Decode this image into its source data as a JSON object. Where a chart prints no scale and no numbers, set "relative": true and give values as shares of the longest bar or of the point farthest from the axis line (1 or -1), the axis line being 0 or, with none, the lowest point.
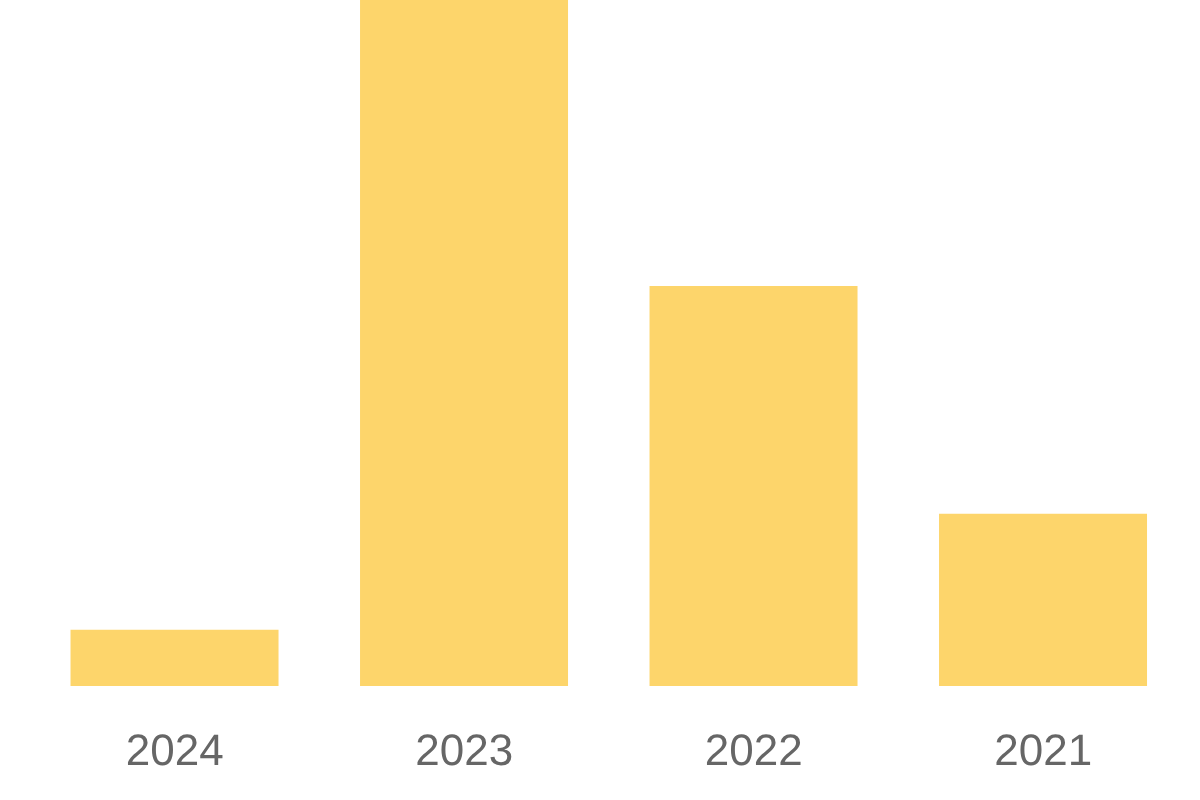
{
  "chart_data": {
    "type": "bar",
    "relative": true,
    "categories": [
      "2024",
      "2023",
      "2022",
      "2021"
    ],
    "values": [
      0.082,
      1,
      0.583,
      0.251
    ],
    "color": "#fdd56b"
  }
}
